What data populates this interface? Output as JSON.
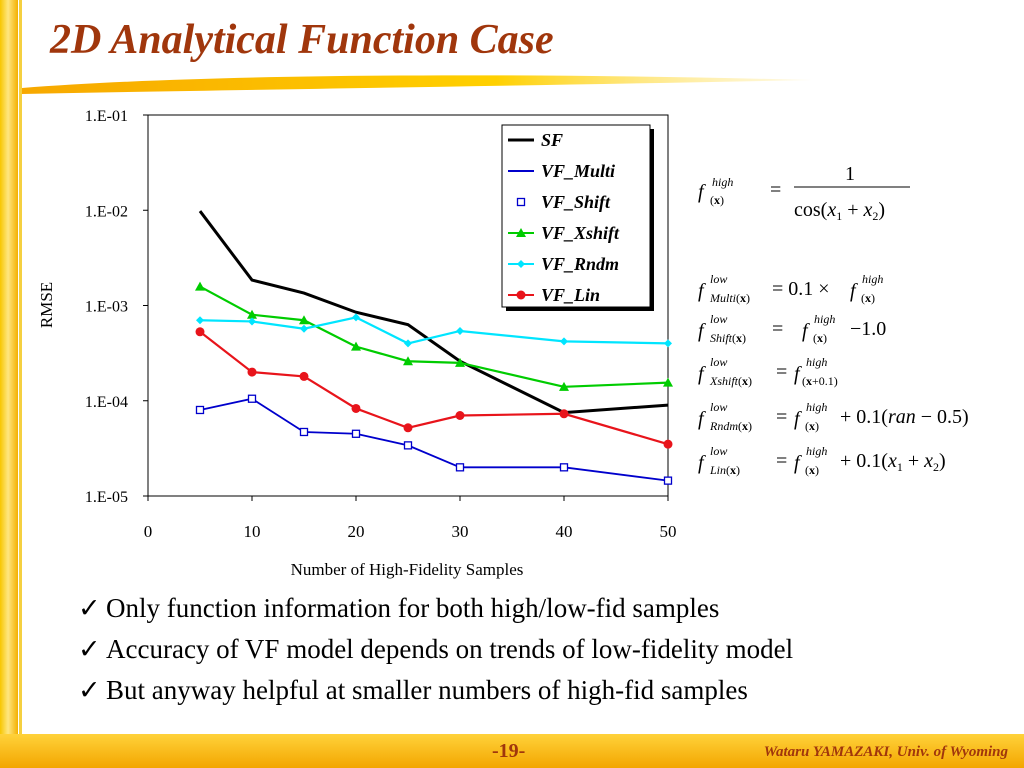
{
  "slide": {
    "title": "2D Analytical Function Case",
    "page_number": "-19-",
    "author": "Wataru YAMAZAKI, Univ. of Wyoming",
    "bullets": [
      "Only function information for both high/low-fid samples",
      "Accuracy of VF model depends on trends of low-fidelity model",
      "But anyway helpful at smaller numbers of high-fid samples"
    ],
    "check_symbol": "✓"
  },
  "chart_data": {
    "type": "line",
    "xlabel": "Number of High-Fidelity Samples",
    "ylabel": "RMSE",
    "xlim": [
      0,
      50
    ],
    "ylim": [
      1e-05,
      0.1
    ],
    "y_scale": "log",
    "x_ticks": [
      "0",
      "10",
      "20",
      "30",
      "40",
      "50"
    ],
    "y_ticks": [
      "1.E-01",
      "1.E-02",
      "1.E-03",
      "1.E-04",
      "1.E-05"
    ],
    "legend_position": "top-right",
    "grid": false,
    "x": [
      5,
      10,
      15,
      20,
      25,
      30,
      40,
      50
    ],
    "series": [
      {
        "name": "SF",
        "color": "#000000",
        "marker": "none",
        "values": [
          0.0098,
          0.00185,
          0.00135,
          0.00085,
          0.00063,
          0.00026,
          7.5e-05,
          9e-05
        ]
      },
      {
        "name": "VF_Multi",
        "color": "#0000cc",
        "marker": "none",
        "values": [
          8e-05,
          0.000105,
          4.7e-05,
          4.5e-05,
          3.4e-05,
          2e-05,
          2e-05,
          1.45e-05
        ]
      },
      {
        "name": "VF_Shift",
        "color": "#0000cc",
        "marker": "square",
        "values": [
          8e-05,
          0.000105,
          4.7e-05,
          4.5e-05,
          3.4e-05,
          2e-05,
          2e-05,
          1.45e-05
        ]
      },
      {
        "name": "VF_Xshift",
        "color": "#00cc00",
        "marker": "triangle",
        "values": [
          0.00158,
          0.0008,
          0.0007,
          0.00037,
          0.00026,
          0.00025,
          0.00014,
          0.000155
        ]
      },
      {
        "name": "VF_Rndm",
        "color": "#00e5ff",
        "marker": "diamond",
        "values": [
          0.0007,
          0.00068,
          0.00057,
          0.00075,
          0.0004,
          0.00054,
          0.00042,
          0.0004
        ]
      },
      {
        "name": "VF_Lin",
        "color": "#e8141b",
        "marker": "circle",
        "values": [
          0.00053,
          0.0002,
          0.00018,
          8.3e-05,
          5.2e-05,
          7e-05,
          7.3e-05,
          3.5e-05
        ]
      }
    ]
  },
  "equations": [
    {
      "name": "f-high",
      "lhs_base": "f",
      "lhs_sup": "high",
      "lhs_sub": "(x)",
      "rhs": "= 1 / cos(x₁ + x₂)"
    },
    {
      "name": "f-low-multi",
      "lhs_base": "f",
      "lhs_sup": "low",
      "lhs_sub": "Multi(x)",
      "rhs": "= 0.1 × f(x)^high"
    },
    {
      "name": "f-low-shift",
      "lhs_base": "f",
      "lhs_sup": "low",
      "lhs_sub": "Shift(x)",
      "rhs": "= f(x)^high − 1.0"
    },
    {
      "name": "f-low-xshift",
      "lhs_base": "f",
      "lhs_sup": "low",
      "lhs_sub": "Xshift(x)",
      "rhs": "= f(x+0.1)^high"
    },
    {
      "name": "f-low-rndm",
      "lhs_base": "f",
      "lhs_sup": "low",
      "lhs_sub": "Rndm(x)",
      "rhs": "= f(x)^high + 0.1(ran − 0.5)"
    },
    {
      "name": "f-low-lin",
      "lhs_base": "f",
      "lhs_sup": "low",
      "lhs_sub": "Lin(x)",
      "rhs": "= f(x)^high + 0.1(x₁ + x₂)"
    }
  ]
}
